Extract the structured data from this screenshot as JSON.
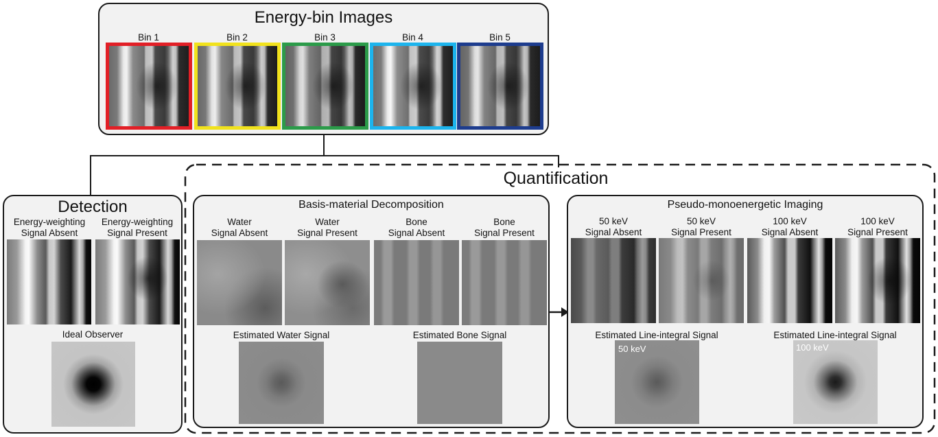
{
  "energy_bins": {
    "title": "Energy-bin Images",
    "bins": [
      {
        "label": "Bin 1",
        "color": "#e21f26"
      },
      {
        "label": "Bin 2",
        "color": "#f6e71d"
      },
      {
        "label": "Bin 3",
        "color": "#2fa84f"
      },
      {
        "label": "Bin 4",
        "color": "#1bb0e8"
      },
      {
        "label": "Bin 5",
        "color": "#1f3f95"
      }
    ]
  },
  "detection": {
    "title": "Detection",
    "absent_label_1": "Energy-weighting",
    "absent_label_2": "Signal Absent",
    "present_label_1": "Energy-weighting",
    "present_label_2": "Signal Present",
    "ideal_label": "Ideal Observer"
  },
  "quantification": {
    "title": "Quantification",
    "basis": {
      "title": "Basis-material Decomposition",
      "panels": [
        {
          "line1": "Water",
          "line2": "Signal Absent"
        },
        {
          "line1": "Water",
          "line2": "Signal Present"
        },
        {
          "line1": "Bone",
          "line2": "Signal Absent"
        },
        {
          "line1": "Bone",
          "line2": "Signal Present"
        }
      ],
      "est_water": "Estimated Water Signal",
      "est_bone": "Estimated Bone Signal"
    },
    "pseudo": {
      "title": "Pseudo-monoenergetic Imaging",
      "panels": [
        {
          "line1": "50 keV",
          "line2": "Signal Absent"
        },
        {
          "line1": "50 keV",
          "line2": "Signal Present"
        },
        {
          "line1": "100 keV",
          "line2": "Signal Absent"
        },
        {
          "line1": "100 keV",
          "line2": "Signal Present"
        }
      ],
      "est_line_1": "Estimated Line-integral Signal",
      "est_line_2": "Estimated Line-integral Signal",
      "inset_50": "50 keV",
      "inset_100": "100 keV"
    }
  }
}
